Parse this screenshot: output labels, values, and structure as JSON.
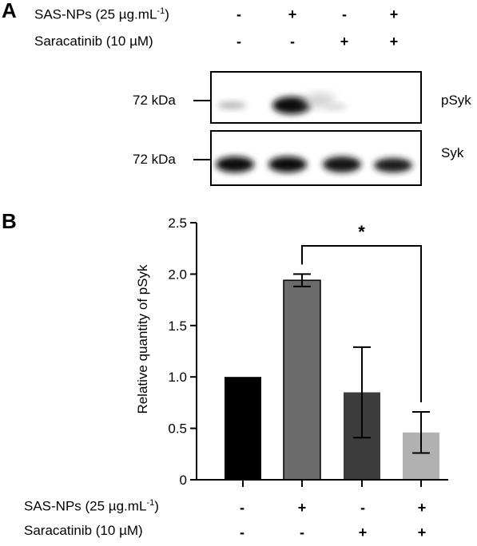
{
  "panel_a": {
    "letter": "A",
    "treatments": [
      {
        "label": "SAS-NPs (25 µg.mL",
        "sup": "-1",
        "label_end": ")",
        "signs": [
          "-",
          "+",
          "-",
          "+"
        ]
      },
      {
        "label": "Saracatinib (10 µM)",
        "signs": [
          "-",
          "-",
          "+",
          "+"
        ]
      }
    ],
    "blots": [
      {
        "marker": "72 kDa",
        "protein": "pSyk"
      },
      {
        "marker": "72 kDa",
        "protein": "Syk"
      }
    ]
  },
  "panel_b": {
    "letter": "B",
    "treatments": [
      {
        "label": "SAS-NPs (25 µg.mL",
        "sup": "-1",
        "label_end": ")",
        "signs": [
          "-",
          "+",
          "-",
          "+"
        ]
      },
      {
        "label": "Saracatinib (10 µM)",
        "signs": [
          "-",
          "-",
          "+",
          "+"
        ]
      }
    ],
    "significance": "*"
  },
  "chart_data": {
    "type": "bar",
    "ylabel": "Relative quantity of pSyk",
    "xlabel": "",
    "ylim": [
      0,
      2.5
    ],
    "yticks": [
      0,
      0.5,
      1.0,
      1.5,
      2.0,
      2.5
    ],
    "ytick_labels": [
      "0",
      "0.5",
      "1.0",
      "1.5",
      "2.0",
      "2.5"
    ],
    "values": [
      1.0,
      1.94,
      0.85,
      0.46
    ],
    "errors": [
      0,
      0.06,
      0.44,
      0.2
    ],
    "colors": [
      "#000000",
      "#6b6b6b",
      "#3c3c3c",
      "#b1b1b1"
    ],
    "significance": {
      "from_bar": 1,
      "to_bar": 3,
      "label": "*"
    }
  }
}
